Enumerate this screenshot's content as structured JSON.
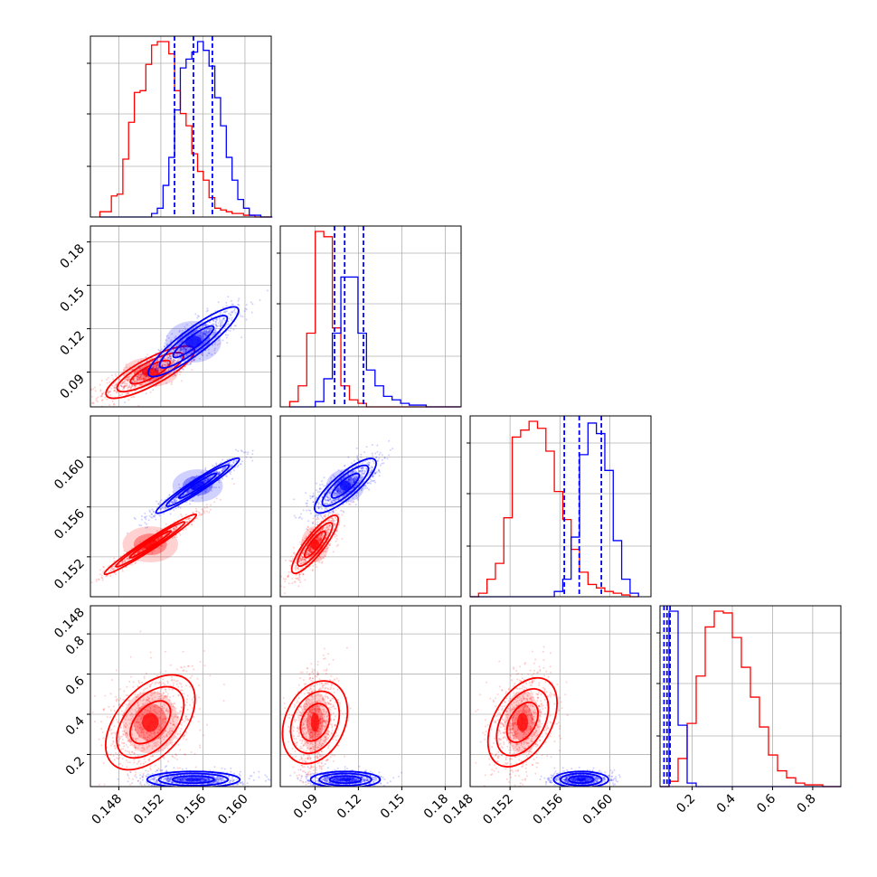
{
  "chart_data": {
    "type": "corner",
    "grid": true,
    "series": [
      {
        "name": "",
        "color": "#ff0000"
      },
      {
        "name": "",
        "color": "#0000ff"
      }
    ],
    "params": [
      {
        "range": [
          0.1453,
          0.1625
        ],
        "ticks": [
          0.148,
          0.152,
          0.156,
          0.16
        ],
        "tick_labels": [
          "0.148",
          "0.152",
          "0.156",
          "0.160"
        ]
      },
      {
        "range": [
          0.066,
          0.191
        ],
        "ticks": [
          0.09,
          0.12,
          0.15,
          0.18
        ],
        "tick_labels": [
          "0.09",
          "0.12",
          "0.15",
          "0.18"
        ]
      },
      {
        "range": [
          0.1488,
          0.1633
        ],
        "ticks": [
          0.152,
          0.156,
          0.16
        ],
        "tick_labels": [
          "0.152",
          "0.156",
          "0.160"
        ]
      },
      {
        "range": [
          0.04,
          0.94
        ],
        "ticks": [
          0.2,
          0.4,
          0.6,
          0.8
        ],
        "tick_labels": [
          "0.2",
          "0.4",
          "0.6",
          "0.8"
        ]
      }
    ],
    "row_label_extra": {
      "row": 3,
      "label": "0.148",
      "value": 0.148
    },
    "col_label_extra": {
      "col": 2,
      "label": "0.148"
    },
    "marginals": [
      {
        "param": 0,
        "quantiles": {
          "color": "#0000ff",
          "values": [
            0.1533,
            0.1551,
            0.1569
          ]
        },
        "red": {
          "edges": [
            0.1462,
            0.1626
          ],
          "heights": [
            0.03,
            0.03,
            0.12,
            0.13,
            0.33,
            0.54,
            0.71,
            0.72,
            0.87,
            0.98,
            1.0,
            1.0,
            0.93,
            0.72,
            0.59,
            0.52,
            0.36,
            0.26,
            0.21,
            0.11,
            0.05,
            0.04,
            0.03,
            0.02,
            0.02,
            0.01,
            0.01,
            0.0,
            0.0,
            0.0
          ]
        },
        "blue": {
          "edges": [
            0.1462,
            0.1626
          ],
          "heights": [
            0,
            0,
            0,
            0,
            0,
            0,
            0,
            0,
            0,
            0.02,
            0.05,
            0.18,
            0.34,
            0.61,
            0.85,
            0.9,
            0.94,
            1.0,
            0.95,
            0.86,
            0.68,
            0.52,
            0.34,
            0.21,
            0.1,
            0.05,
            0.01,
            0.01,
            0,
            0
          ]
        }
      },
      {
        "param": 1,
        "quantiles": {
          "color": "#0000ff",
          "values": [
            0.1035,
            0.1105,
            0.1235
          ]
        },
        "red": {
          "edges": [
            0.0725,
            0.1905
          ],
          "heights": [
            0.03,
            0.12,
            0.42,
            1.0,
            0.97,
            0.45,
            0.12,
            0.04,
            0.02,
            0.0,
            0,
            0,
            0,
            0,
            0,
            0,
            0,
            0,
            0,
            0
          ]
        },
        "blue": {
          "edges": [
            0.0725,
            0.1905
          ],
          "heights": [
            0,
            0,
            0,
            0.03,
            0.16,
            0.42,
            0.74,
            0.74,
            0.42,
            0.21,
            0.12,
            0.06,
            0.04,
            0.02,
            0.01,
            0.01,
            0.0,
            0,
            0,
            0
          ]
        }
      },
      {
        "param": 2,
        "quantiles": {
          "color": "#0000ff",
          "values": [
            0.15635,
            0.15755,
            0.15932
          ]
        },
        "red": {
          "edges": [
            0.1488,
            0.1623
          ],
          "heights": [
            0.0,
            0.02,
            0.1,
            0.19,
            0.45,
            0.91,
            0.95,
            1.0,
            0.96,
            0.83,
            0.6,
            0.44,
            0.27,
            0.14,
            0.07,
            0.05,
            0.03,
            0.02,
            0.01,
            0.0
          ]
        },
        "blue": {
          "edges": [
            0.1488,
            0.1623
          ],
          "heights": [
            0,
            0,
            0,
            0,
            0,
            0,
            0,
            0,
            0,
            0,
            0.03,
            0.1,
            0.34,
            0.81,
            0.99,
            0.93,
            0.72,
            0.32,
            0.1,
            0.02
          ]
        }
      },
      {
        "param": 3,
        "quantiles": {
          "color": "#0000ff",
          "values": [
            0.06,
            0.075,
            0.09
          ]
        },
        "red": {
          "edges": [
            0.04,
            0.94
          ],
          "heights": [
            0,
            0.03,
            0.16,
            0.36,
            0.63,
            0.91,
            1.0,
            0.99,
            0.85,
            0.68,
            0.51,
            0.34,
            0.18,
            0.09,
            0.05,
            0.02,
            0.01,
            0.01,
            0,
            0
          ]
        },
        "blue": {
          "edges": [
            0.04,
            0.94
          ],
          "heights": [
            0,
            1.0,
            0.35,
            0.02,
            0,
            0,
            0,
            0,
            0,
            0,
            0,
            0,
            0,
            0,
            0,
            0,
            0,
            0,
            0,
            0
          ]
        }
      }
    ],
    "joint_2d": [
      {
        "x": 0,
        "y": 1,
        "red": {
          "mean": [
            0.151,
            0.09
          ],
          "sd": [
            0.0022,
            0.0085
          ],
          "corr": 0.8
        },
        "blue": {
          "mean": [
            0.1551,
            0.111
          ],
          "sd": [
            0.0022,
            0.012
          ],
          "corr": 0.85
        }
      },
      {
        "x": 0,
        "y": 2,
        "red": {
          "mean": [
            0.151,
            0.153
          ],
          "sd": [
            0.0022,
            0.0012
          ],
          "corr": 0.97
        },
        "blue": {
          "mean": [
            0.1555,
            0.1577
          ],
          "sd": [
            0.002,
            0.0011
          ],
          "corr": 0.95
        }
      },
      {
        "x": 1,
        "y": 2,
        "red": {
          "mean": [
            0.09,
            0.153
          ],
          "sd": [
            0.008,
            0.0012
          ],
          "corr": 0.8
        },
        "blue": {
          "mean": [
            0.111,
            0.1577
          ],
          "sd": [
            0.011,
            0.0011
          ],
          "corr": 0.75
        }
      },
      {
        "x": 0,
        "y": 3,
        "red": {
          "mean": [
            0.151,
            0.36
          ],
          "sd": [
            0.0022,
            0.13
          ],
          "corr": 0.3
        },
        "blue": {
          "mean": [
            0.1551,
            0.075
          ],
          "sd": [
            0.0022,
            0.02
          ],
          "corr": 0.0
        }
      },
      {
        "x": 1,
        "y": 3,
        "red": {
          "mean": [
            0.09,
            0.36
          ],
          "sd": [
            0.008,
            0.13
          ],
          "corr": 0.15
        },
        "blue": {
          "mean": [
            0.111,
            0.075
          ],
          "sd": [
            0.012,
            0.02
          ],
          "corr": 0.0
        }
      },
      {
        "x": 2,
        "y": 3,
        "red": {
          "mean": [
            0.153,
            0.36
          ],
          "sd": [
            0.0012,
            0.13
          ],
          "corr": 0.3
        },
        "blue": {
          "mean": [
            0.1577,
            0.075
          ],
          "sd": [
            0.0011,
            0.02
          ],
          "corr": 0.0
        }
      }
    ]
  }
}
